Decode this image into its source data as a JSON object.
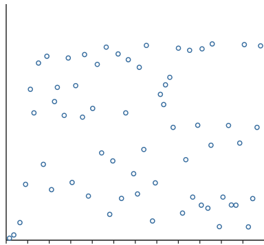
{
  "chart_data": {
    "type": "scatter",
    "title": "",
    "xlabel": "",
    "ylabel": "",
    "xlim": [
      0,
      100
    ],
    "ylim": [
      0,
      100
    ],
    "grid": false,
    "marker": "hollow-circle",
    "color": "#3a6fa0",
    "series": [
      {
        "points": [
          [
            0.5,
            0.3
          ],
          [
            2.2,
            1.8
          ],
          [
            4.6,
            7.6
          ],
          [
            6.8,
            25.6
          ],
          [
            8.7,
            70.3
          ],
          [
            10.1,
            59.2
          ],
          [
            11.9,
            82.6
          ],
          [
            13.8,
            35.0
          ],
          [
            15.2,
            85.8
          ],
          [
            17.0,
            23.1
          ],
          [
            18.2,
            64.5
          ],
          [
            19.3,
            71.2
          ],
          [
            22.0,
            58.0
          ],
          [
            23.6,
            85.0
          ],
          [
            25.1,
            26.5
          ],
          [
            26.5,
            72.0
          ],
          [
            29.2,
            57.2
          ],
          [
            30.0,
            86.6
          ],
          [
            31.5,
            20.1
          ],
          [
            33.2,
            61.3
          ],
          [
            35.0,
            82.0
          ],
          [
            36.7,
            40.4
          ],
          [
            38.5,
            90.1
          ],
          [
            39.9,
            11.5
          ],
          [
            41.1,
            36.6
          ],
          [
            43.2,
            86.9
          ],
          [
            44.5,
            19.0
          ],
          [
            46.2,
            59.2
          ],
          [
            47.2,
            84.2
          ],
          [
            49.3,
            30.6
          ],
          [
            50.8,
            21.1
          ],
          [
            51.5,
            80.6
          ],
          [
            53.3,
            42.0
          ],
          [
            54.3,
            90.9
          ],
          [
            56.7,
            8.4
          ],
          [
            57.8,
            26.3
          ],
          [
            59.8,
            67.9
          ],
          [
            61.1,
            63.1
          ],
          [
            61.8,
            72.4
          ],
          [
            63.5,
            75.9
          ],
          [
            64.8,
            52.4
          ],
          [
            66.9,
            89.6
          ],
          [
            68.5,
            12.1
          ],
          [
            69.8,
            37.2
          ],
          [
            71.3,
            88.6
          ],
          [
            72.5,
            19.6
          ],
          [
            74.5,
            53.4
          ],
          [
            75.9,
            15.8
          ],
          [
            76.2,
            89.3
          ],
          [
            78.5,
            14.4
          ],
          [
            79.7,
            44.0
          ],
          [
            80.2,
            91.6
          ],
          [
            83.0,
            5.7
          ],
          [
            84.4,
            19.6
          ],
          [
            86.6,
            53.3
          ],
          [
            87.7,
            15.9
          ],
          [
            89.5,
            15.8
          ],
          [
            91.0,
            45.0
          ],
          [
            92.8,
            91.3
          ],
          [
            94.4,
            5.6
          ],
          [
            96.1,
            18.9
          ],
          [
            97.8,
            52.4
          ],
          [
            99.2,
            90.7
          ]
        ]
      }
    ]
  }
}
